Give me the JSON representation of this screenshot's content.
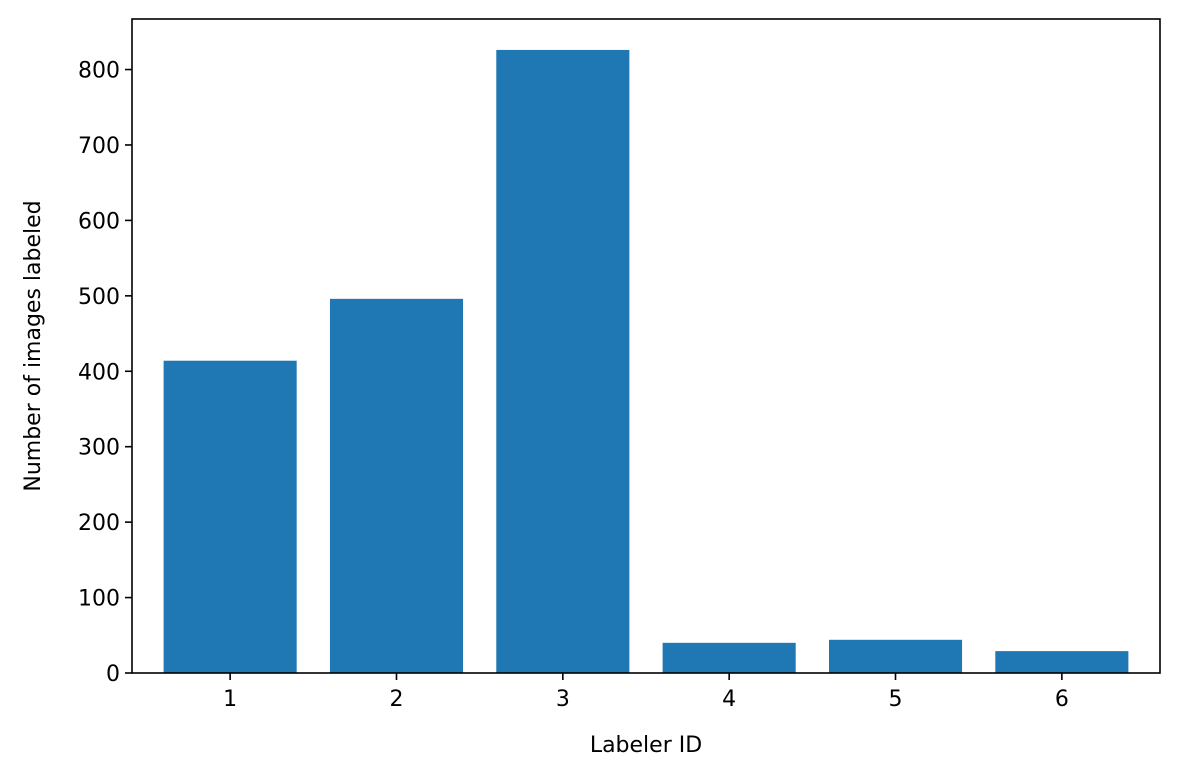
{
  "chart_data": {
    "type": "bar",
    "title": "",
    "xlabel": "Labeler ID",
    "ylabel": "Number of images labeled",
    "categories": [
      "1",
      "2",
      "3",
      "4",
      "5",
      "6"
    ],
    "values": [
      414,
      496,
      826,
      40,
      44,
      29
    ],
    "ylim": [
      0,
      867
    ],
    "yticks": [
      0,
      100,
      200,
      300,
      400,
      500,
      600,
      700,
      800
    ],
    "grid": false,
    "legend": "none",
    "bar_color": "#1f77b4"
  }
}
